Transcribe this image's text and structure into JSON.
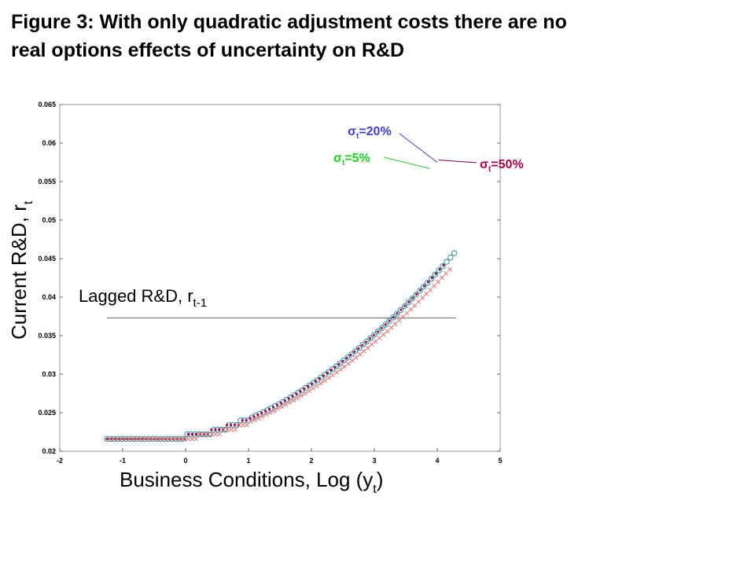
{
  "title_line1": "Figure 3: With only quadratic adjustment costs there are no",
  "title_line2": "real options effects of uncertainty on R&D",
  "chart_data": {
    "type": "scatter",
    "xlabel": {
      "text": "Business Conditions, Log (y",
      "sub": "t",
      "close": ")"
    },
    "ylabel": {
      "text": "Current R&D, r",
      "sub": "t"
    },
    "xlim": [
      -2,
      5
    ],
    "ylim": [
      0.02,
      0.065
    ],
    "xticks": [
      "-2",
      "-1",
      "0",
      "1",
      "2",
      "3",
      "4",
      "5"
    ],
    "yticks": [
      "0.02",
      "0.025",
      "0.03",
      "0.035",
      "0.04",
      "0.045",
      "0.05",
      "0.055",
      "0.06",
      "0.065"
    ],
    "grid": false,
    "colors": {
      "teal": "#2f8f8f",
      "magenta": "#a0005a",
      "green": "#22bb22",
      "blue": "#3a3aaa",
      "purple": "#800040"
    },
    "series": [
      {
        "name": "σt=20%",
        "marker": "circle",
        "color": "#2f8f8f",
        "x_start": -1.25,
        "x_end": 4.27,
        "n": 92,
        "curve": {
          "floor": 0.0218,
          "knee": -0.2,
          "coef": 0.00174,
          "power": 1.75
        }
      },
      {
        "name": "σt=5%",
        "marker": "dot",
        "color": "#a0005a",
        "x_start": -1.25,
        "x_end": 4.1,
        "n": 88,
        "curve": {
          "floor": 0.0218,
          "knee": -0.2,
          "coef": 0.00174,
          "power": 1.75
        }
      },
      {
        "name": "σt=50%",
        "marker": "x",
        "color": "#e07070",
        "x_start": -1.2,
        "x_end": 4.2,
        "n": 88,
        "curve": {
          "floor": 0.0216,
          "knee": -0.15,
          "coef": 0.00168,
          "power": 1.75
        }
      }
    ],
    "reference_line": {
      "y": 0.0373,
      "x_start": -1.25,
      "x_end": 4.3
    },
    "annotations": {
      "lagged": {
        "text": "Lagged R&D, r",
        "sub": "t-1"
      },
      "sigma20": {
        "sym": "σ",
        "sub": "t",
        "rest": "=20%",
        "color": "#4040c0",
        "line_color": "#4040c0",
        "point": [
          4.0,
          0.0575
        ]
      },
      "sigma5": {
        "sym": "σ",
        "sub": "t",
        "rest": "=5%",
        "color": "#22cc22",
        "line_color": "#22cc22",
        "point": [
          3.88,
          0.0567
        ]
      },
      "sigma50": {
        "sym": "σ",
        "sub": "t",
        "rest": "=50%",
        "color": "#a0004a",
        "line_color": "#800040",
        "point": [
          4.02,
          0.0578
        ]
      }
    }
  }
}
